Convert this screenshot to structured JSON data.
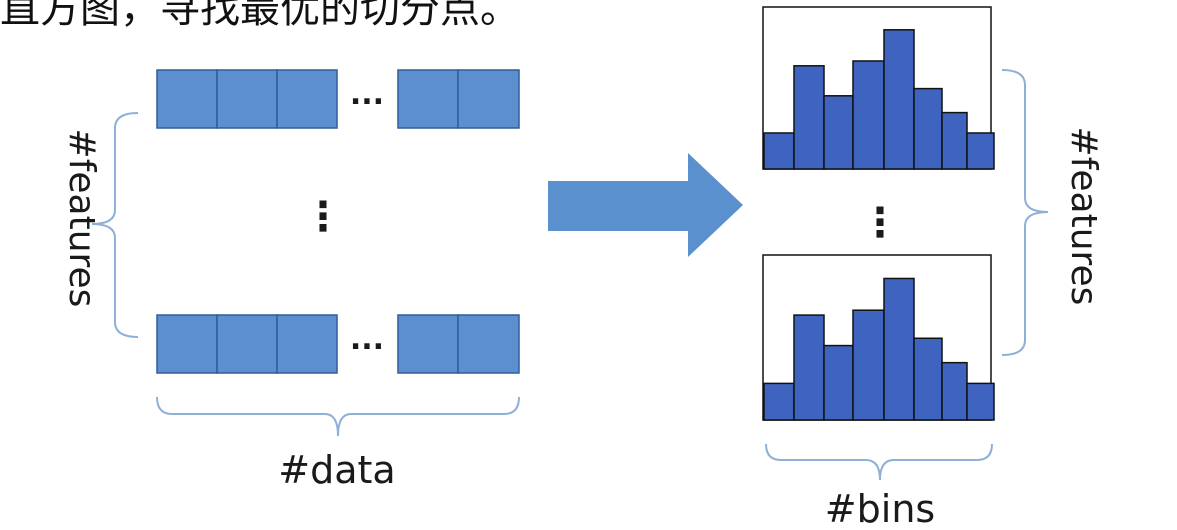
{
  "caption": {
    "partial_text": "直方图，寻找最优的切分点。"
  },
  "left_block": {
    "features_label": "#features",
    "data_label": "#data",
    "row_ellipsis": "...",
    "column_ellipsis": "⋮"
  },
  "right_block": {
    "features_label": "#features",
    "bins_label": "#bins",
    "column_ellipsis": "⋮"
  },
  "colors": {
    "cell_fill": "#5b8fd0",
    "cell_stroke": "#2f5f98",
    "bar_fill": "#3f64c0",
    "bar_stroke": "#111111",
    "bracket": "#8eb0d8",
    "arrow": "#5b90cf"
  },
  "histogram_values": [
    0.3,
    0.86,
    0.61,
    0.9,
    1.16,
    0.67,
    0.47,
    0.3
  ]
}
